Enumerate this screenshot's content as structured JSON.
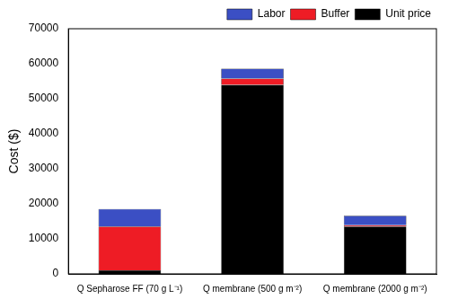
{
  "chart_data": {
    "type": "bar",
    "stacked": true,
    "y_label": "Cost ($)",
    "categories": [
      "Q Sepharose FF (70 g L⁻¹)",
      "Q membrane (500 g m⁻²)",
      "Q membrane (2000 g m⁻²)"
    ],
    "series": [
      {
        "name": "Unit price",
        "color": "#000000",
        "values": [
          1000,
          54000,
          13500
        ]
      },
      {
        "name": "Buffer",
        "color": "#ee1c25",
        "values": [
          12500,
          1800,
          400
        ]
      },
      {
        "name": "Labor",
        "color": "#3b4fc4",
        "values": [
          5000,
          2800,
          2700
        ]
      }
    ],
    "ylim": [
      0,
      70000
    ],
    "yticks": [
      0,
      10000,
      20000,
      30000,
      40000,
      50000,
      60000,
      70000
    ],
    "grid": false,
    "legend": "upper right"
  }
}
